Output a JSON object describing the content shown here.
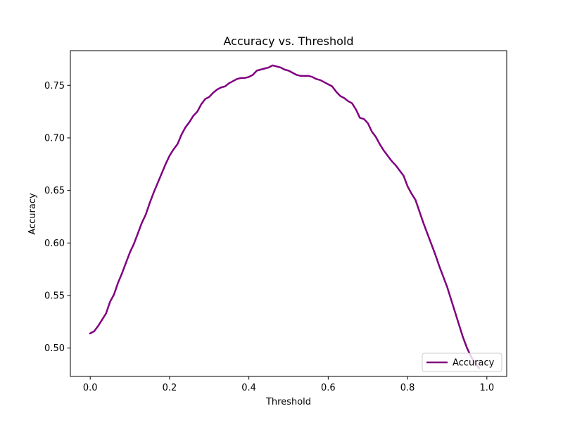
{
  "chart_data": {
    "type": "line",
    "title": "Accuracy vs. Threshold",
    "xlabel": "Threshold",
    "ylabel": "Accuracy",
    "xlim": [
      -0.05,
      1.05
    ],
    "ylim": [
      0.473,
      0.783
    ],
    "xticks": [
      0.0,
      0.2,
      0.4,
      0.6,
      0.8,
      1.0
    ],
    "xtick_labels": [
      "0.0",
      "0.2",
      "0.4",
      "0.6",
      "0.8",
      "1.0"
    ],
    "yticks": [
      0.5,
      0.55,
      0.6,
      0.65,
      0.7,
      0.75
    ],
    "ytick_labels": [
      "0.50",
      "0.55",
      "0.60",
      "0.65",
      "0.70",
      "0.75"
    ],
    "grid": false,
    "legend_position": "lower-right",
    "series": [
      {
        "name": "Accuracy",
        "color": "#800080",
        "x": [
          0.0,
          0.01,
          0.02,
          0.03,
          0.04,
          0.05,
          0.06,
          0.07,
          0.08,
          0.09,
          0.1,
          0.11,
          0.12,
          0.13,
          0.14,
          0.15,
          0.16,
          0.17,
          0.18,
          0.19,
          0.2,
          0.21,
          0.22,
          0.23,
          0.24,
          0.25,
          0.26,
          0.27,
          0.28,
          0.29,
          0.3,
          0.31,
          0.32,
          0.33,
          0.34,
          0.35,
          0.36,
          0.37,
          0.38,
          0.39,
          0.4,
          0.41,
          0.42,
          0.43,
          0.44,
          0.45,
          0.46,
          0.47,
          0.48,
          0.49,
          0.5,
          0.51,
          0.52,
          0.53,
          0.54,
          0.55,
          0.56,
          0.57,
          0.58,
          0.59,
          0.6,
          0.61,
          0.62,
          0.63,
          0.64,
          0.65,
          0.66,
          0.67,
          0.68,
          0.69,
          0.7,
          0.71,
          0.72,
          0.73,
          0.74,
          0.75,
          0.76,
          0.77,
          0.78,
          0.79,
          0.8,
          0.81,
          0.82,
          0.83,
          0.84,
          0.85,
          0.86,
          0.87,
          0.88,
          0.89,
          0.9,
          0.91,
          0.92,
          0.93,
          0.94,
          0.95,
          0.96,
          0.97,
          0.98
        ],
        "y": [
          0.514,
          0.516,
          0.521,
          0.527,
          0.533,
          0.544,
          0.551,
          0.562,
          0.571,
          0.581,
          0.591,
          0.599,
          0.609,
          0.619,
          0.627,
          0.638,
          0.648,
          0.657,
          0.666,
          0.675,
          0.683,
          0.689,
          0.694,
          0.703,
          0.71,
          0.715,
          0.721,
          0.725,
          0.732,
          0.737,
          0.739,
          0.743,
          0.746,
          0.748,
          0.749,
          0.752,
          0.754,
          0.756,
          0.757,
          0.757,
          0.758,
          0.76,
          0.764,
          0.765,
          0.766,
          0.767,
          0.769,
          0.768,
          0.767,
          0.765,
          0.764,
          0.762,
          0.76,
          0.759,
          0.759,
          0.759,
          0.758,
          0.756,
          0.755,
          0.753,
          0.751,
          0.749,
          0.744,
          0.74,
          0.738,
          0.735,
          0.733,
          0.727,
          0.719,
          0.718,
          0.714,
          0.706,
          0.701,
          0.694,
          0.688,
          0.683,
          0.678,
          0.674,
          0.669,
          0.664,
          0.654,
          0.647,
          0.641,
          0.63,
          0.619,
          0.609,
          0.599,
          0.589,
          0.578,
          0.568,
          0.558,
          0.546,
          0.534,
          0.522,
          0.51,
          0.5,
          0.492,
          0.486,
          0.481
        ]
      }
    ]
  }
}
